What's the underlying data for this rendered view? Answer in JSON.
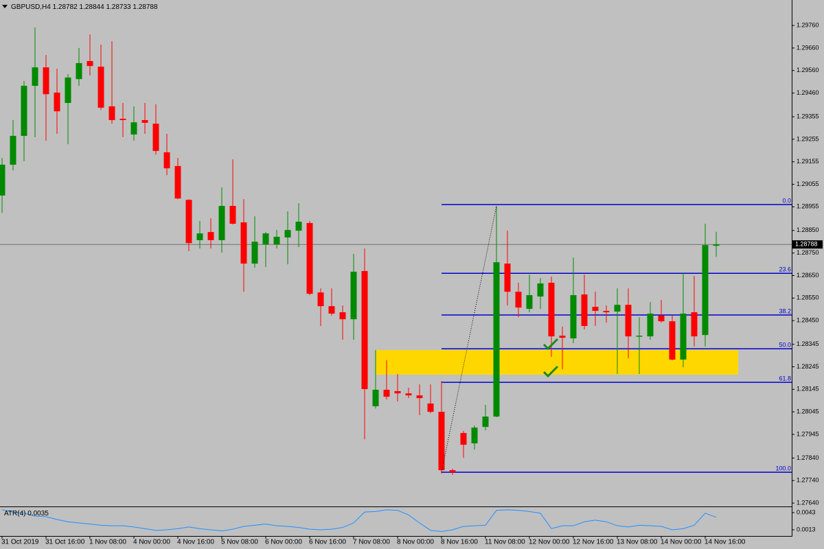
{
  "chart_data": [
    {
      "type": "candlestick",
      "title": "GBPUSD,H4",
      "categories": [
        "31 Oct 2019",
        null,
        null,
        null,
        "31 Oct 16:00",
        null,
        null,
        null,
        "1 Nov 08:00",
        null,
        null,
        null,
        "4 Nov 00:00",
        null,
        null,
        null,
        "4 Nov 16:00",
        null,
        null,
        null,
        "5 Nov 08:00",
        null,
        null,
        null,
        "6 Nov 00:00",
        null,
        null,
        null,
        "6 Nov 16:00",
        null,
        null,
        null,
        "7 Nov 08:00",
        null,
        null,
        null,
        "8 Nov 00:00",
        null,
        null,
        null,
        "8 Nov 16:00",
        null,
        null,
        null,
        "11 Nov 08:00",
        null,
        null,
        null,
        "12 Nov 00:00",
        null,
        null,
        null,
        "12 Nov 16:00",
        null,
        null,
        null,
        "13 Nov 08:00",
        null,
        null,
        null,
        "14 Nov 00:00",
        null,
        null,
        null,
        "14 Nov 16:00",
        null
      ],
      "open": [
        1.29005,
        1.29142,
        1.2927,
        1.29492,
        1.29574,
        1.29462,
        1.29416,
        1.29522,
        1.29602,
        1.29577,
        1.29401,
        1.29346,
        1.29276,
        1.2934,
        1.29324,
        1.29197,
        1.29136,
        1.28986,
        1.28807,
        1.28843,
        1.28807,
        1.28959,
        1.28886,
        1.28703,
        1.28788,
        1.28788,
        1.28819,
        1.28849,
        1.28883,
        1.28575,
        1.28514,
        1.28487,
        1.28456,
        1.2867,
        1.2807,
        1.28143,
        1.28137,
        1.28127,
        1.28118,
        1.28082,
        1.28045,
        1.27786,
        1.27951,
        1.27905,
        1.27978,
        1.28024,
        1.28703,
        1.28578,
        1.28502,
        1.28557,
        1.28618,
        1.28383,
        1.28371,
        1.28566,
        1.28511,
        1.28493,
        1.2849,
        1.2852,
        1.2838,
        1.2838,
        1.28472,
        1.28447,
        1.28277,
        1.28487,
        1.28386,
        1.28782
      ],
      "high": [
        1.29172,
        1.2934,
        1.29513,
        1.29751,
        1.29629,
        1.29568,
        1.29544,
        1.2966,
        1.2972,
        1.29675,
        1.2969,
        1.29416,
        1.29401,
        1.29416,
        1.2941,
        1.29279,
        1.29172,
        1.28989,
        1.28892,
        1.28904,
        1.29041,
        1.29166,
        1.28989,
        1.28913,
        1.28843,
        1.28852,
        1.28935,
        1.28971,
        1.28892,
        1.28593,
        1.28593,
        1.28517,
        1.28746,
        1.2877,
        1.28319,
        1.28274,
        1.28213,
        1.28152,
        1.28167,
        1.28167,
        1.28182,
        1.27792,
        1.2796,
        1.27984,
        1.28076,
        1.28959,
        1.28849,
        1.28618,
        1.28654,
        1.28639,
        1.28645,
        1.28423,
        1.2873,
        1.28654,
        1.28578,
        1.28517,
        1.28593,
        1.28593,
        1.28465,
        1.28532,
        1.28542,
        1.28472,
        1.2866,
        1.28648,
        1.2888,
        1.28844
      ],
      "low": [
        1.28928,
        1.29117,
        1.29157,
        1.29264,
        1.29248,
        1.29279,
        1.29233,
        1.29492,
        1.29538,
        1.29385,
        1.29324,
        1.29264,
        1.29248,
        1.29279,
        1.29187,
        1.29096,
        1.28989,
        1.28758,
        1.2877,
        1.2877,
        1.28752,
        1.28877,
        1.28578,
        1.28685,
        1.28688,
        1.2877,
        1.287,
        1.28776,
        1.28563,
        1.28426,
        1.28472,
        1.28365,
        1.28365,
        1.27923,
        1.2806,
        1.281,
        1.28091,
        1.28106,
        1.2803,
        1.28039,
        1.27771,
        1.27765,
        1.27841,
        1.27878,
        1.27963,
        1.28021,
        1.28517,
        1.28465,
        1.28487,
        1.28502,
        1.28289,
        1.28234,
        1.2835,
        1.28411,
        1.28426,
        1.28441,
        1.28213,
        1.28283,
        1.28213,
        1.28365,
        1.28441,
        1.28274,
        1.28243,
        1.28335,
        1.28335,
        1.28733
      ],
      "close": [
        1.29142,
        1.2927,
        1.29492,
        1.29574,
        1.29455,
        1.29379,
        1.29529,
        1.29593,
        1.2958,
        1.29395,
        1.2934,
        1.2934,
        1.2933,
        1.29328,
        1.29203,
        1.29126,
        1.28992,
        1.28794,
        1.28837,
        1.28807,
        1.28959,
        1.2888,
        1.28703,
        1.288,
        1.28837,
        1.28822,
        1.28852,
        1.28889,
        1.28569,
        1.28514,
        1.28481,
        1.28456,
        1.28667,
        1.28146,
        1.28143,
        1.28112,
        1.28127,
        1.28118,
        1.28106,
        1.28045,
        1.27786,
        1.27777,
        1.27899,
        1.27975,
        1.28024,
        1.28709,
        1.28578,
        1.28508,
        1.28563,
        1.28615,
        1.2838,
        1.28374,
        1.28563,
        1.28426,
        1.28493,
        1.28487,
        1.2852,
        1.2838,
        1.28383,
        1.28481,
        1.28447,
        1.28277,
        1.28481,
        1.2838,
        1.28785,
        1.28788
      ],
      "up_color": "#008a00",
      "down_color": "#ff0000",
      "ylim": [
        1.27625,
        1.29873
      ],
      "yticks": [
        {
          "value": 1.2976,
          "label": "1.29760"
        },
        {
          "value": 1.2966,
          "label": "1.29660"
        },
        {
          "value": 1.2956,
          "label": "1.29560"
        },
        {
          "value": 1.2946,
          "label": "1.29460"
        },
        1.29355,
        1.29255,
        1.29155,
        1.29055,
        1.28955,
        {
          "value": 1.2885,
          "label": "1.28850"
        },
        {
          "value": 1.2875,
          "label": "1.28750"
        },
        {
          "value": 1.2865,
          "label": "1.28650"
        },
        {
          "value": 1.2855,
          "label": "1.28550"
        },
        {
          "value": 1.2845,
          "label": "1.28450"
        },
        1.28345,
        1.28245,
        1.28145,
        1.28045,
        1.27945,
        {
          "value": 1.2784,
          "label": "1.27840"
        },
        {
          "value": 1.2774,
          "label": "1.27740"
        },
        {
          "value": 1.2764,
          "label": "1.27640"
        }
      ],
      "fib_color": "#0000cd",
      "fib_levels": [
        {
          "label": "0.0",
          "price": 1.28965
        },
        {
          "label": "23.6",
          "price": 1.2866
        },
        {
          "label": "38.2",
          "price": 1.28475
        },
        {
          "label": "50.0",
          "price": 1.28325
        },
        {
          "label": "61.8",
          "price": 1.28176
        },
        {
          "label": "100.0",
          "price": 1.27777
        }
      ],
      "zone": {
        "top": 1.28319,
        "bottom": 1.2821,
        "color": "#ffd700"
      }
    },
    {
      "type": "line",
      "title": "ATR(4)",
      "color": "#1e90ff",
      "values": [
        0.0048,
        0.0044,
        0.0042,
        0.0037,
        0.0036,
        0.0031,
        0.0027,
        0.0025,
        0.0023,
        0.0021,
        0.002,
        0.002,
        0.0018,
        0.0015,
        0.0012,
        0.0013,
        0.0015,
        0.0018,
        0.0015,
        0.0013,
        0.0011,
        0.0014,
        0.0019,
        0.0021,
        0.0023,
        0.002,
        0.0019,
        0.0017,
        0.0014,
        0.0013,
        0.0014,
        0.0017,
        0.0025,
        0.0044,
        0.0045,
        0.0048,
        0.0047,
        0.0039,
        0.0025,
        0.0012,
        0.001,
        0.0013,
        0.0019,
        0.002,
        0.0021,
        0.0047,
        0.0048,
        0.0047,
        0.0045,
        0.0042,
        0.0015,
        0.002,
        0.002,
        0.0027,
        0.003,
        0.0027,
        0.002,
        0.0018,
        0.0021,
        0.002,
        0.0019,
        0.0013,
        0.0015,
        0.0021,
        0.0042,
        0.0035
      ],
      "ylim": [
        0.00034,
        0.00514
      ],
      "yticks": [
        0.0043,
        0.0013
      ]
    }
  ]
}
